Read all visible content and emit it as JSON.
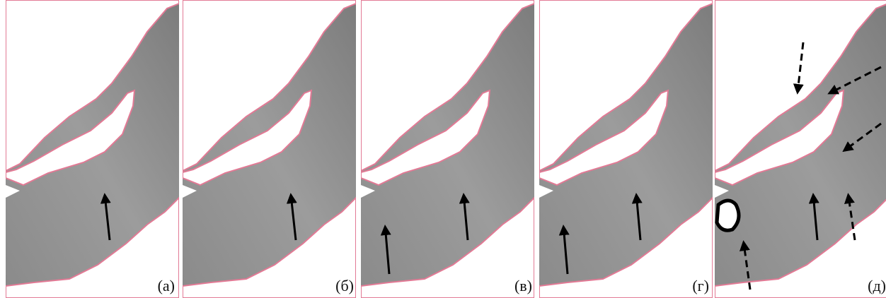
{
  "panels": [
    {
      "label": "(а)"
    },
    {
      "label": "(б)"
    },
    {
      "label": "(в)"
    },
    {
      "label": "(г)"
    },
    {
      "label": "(д)"
    }
  ]
}
